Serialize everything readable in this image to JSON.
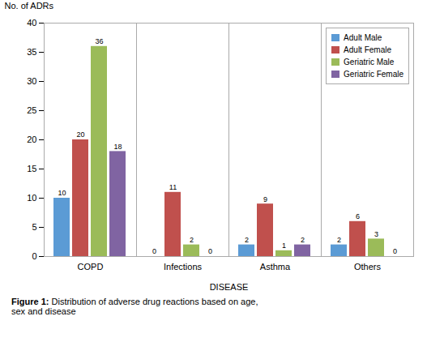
{
  "chart_data": {
    "type": "bar",
    "caption": "Figure 1: Distribution of adverse drug reactions based on age,\nsex and disease",
    "xlabel": "DISEASE",
    "ylabel": "No. of ADRs",
    "categories": [
      "COPD",
      "Infections",
      "Asthma",
      "Others"
    ],
    "series": [
      {
        "name": "Adult Male",
        "color": "#5B9BD5",
        "values": [
          10,
          0,
          2,
          2
        ]
      },
      {
        "name": "Adult Female",
        "color": "#C0504D",
        "values": [
          20,
          11,
          9,
          6
        ]
      },
      {
        "name": "Geriatric Male",
        "color": "#9BBB59",
        "values": [
          36,
          2,
          1,
          3
        ]
      },
      {
        "name": "Geriatric Female",
        "color": "#8064A2",
        "values": [
          18,
          0,
          2,
          0
        ]
      }
    ],
    "ylim": [
      0,
      40
    ],
    "yticks": [
      0,
      5,
      10,
      15,
      20,
      25,
      30,
      35,
      40
    ],
    "grid": false,
    "legend": "upper right",
    "data_labels": true
  }
}
